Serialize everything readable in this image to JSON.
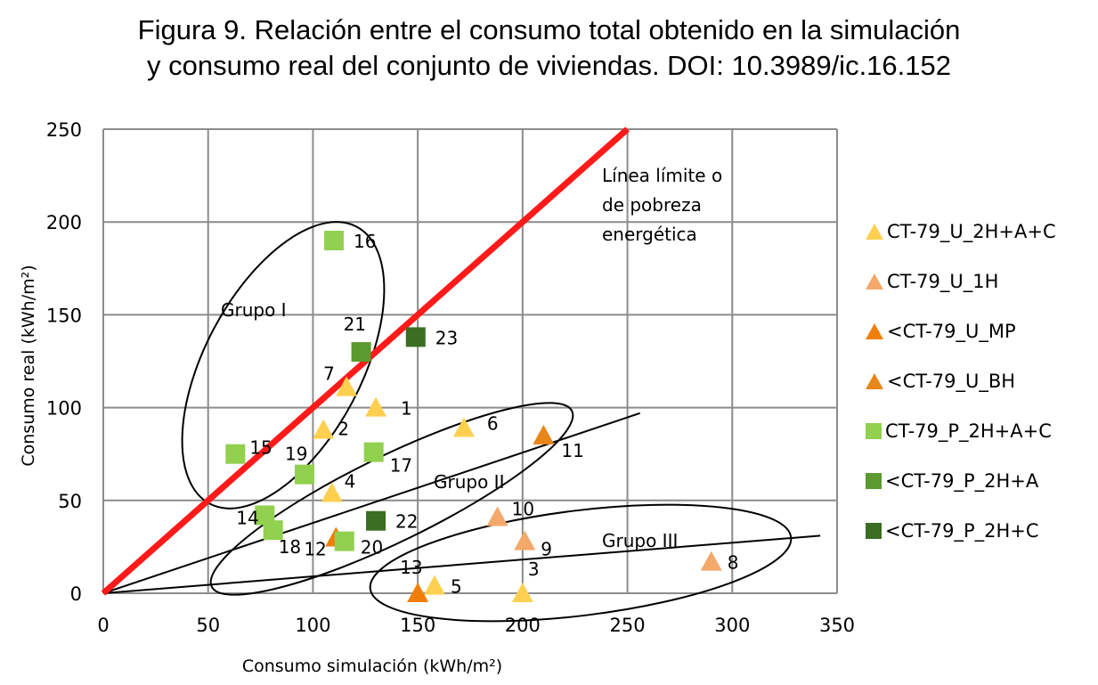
{
  "title_line1": "Figura 9. Relación entre el consumo total obtenido en la simulación",
  "title_line2": "y consumo real del conjunto de viviendas. DOI: 10.3989/ic.16.152",
  "chart_data": {
    "type": "scatter",
    "xlabel": "Consumo simulación (kWh/m²)",
    "ylabel": "Consumo real (kWh/m²)",
    "xlim": [
      0,
      350
    ],
    "ylim": [
      0,
      250
    ],
    "xticks": [
      0,
      50,
      100,
      150,
      200,
      250,
      300,
      350
    ],
    "yticks": [
      0,
      50,
      100,
      150,
      200,
      250
    ],
    "grid": true,
    "legend_position": "right",
    "series": [
      {
        "name": "CT-79_U_2H+A+C",
        "marker": "triangle",
        "color": "#FFD050",
        "points": [
          {
            "label": "1",
            "x": 130,
            "y": 100
          },
          {
            "label": "2",
            "x": 105,
            "y": 88
          },
          {
            "label": "3",
            "x": 200,
            "y": 0
          },
          {
            "label": "4",
            "x": 109,
            "y": 54
          },
          {
            "label": "5",
            "x": 158,
            "y": 4
          },
          {
            "label": "6",
            "x": 172,
            "y": 89
          },
          {
            "label": "7",
            "x": 116,
            "y": 111
          }
        ]
      },
      {
        "name": "CT-79_U_1H",
        "marker": "triangle",
        "color": "#F4A86A",
        "points": [
          {
            "label": "8",
            "x": 290,
            "y": 17
          },
          {
            "label": "9",
            "x": 201,
            "y": 28
          },
          {
            "label": "10",
            "x": 188,
            "y": 41
          }
        ]
      },
      {
        "name": "<CT-79_U_MP",
        "marker": "triangle",
        "color": "#F07F0A",
        "points": [
          {
            "label": "12",
            "x": 111,
            "y": 30
          },
          {
            "label": "13",
            "x": 150,
            "y": 0
          }
        ]
      },
      {
        "name": "<CT-79_U_BH",
        "marker": "triangle",
        "color": "#E8861A",
        "points": [
          {
            "label": "11",
            "x": 210,
            "y": 85
          }
        ]
      },
      {
        "name": "CT-79_P_2H+A+C",
        "marker": "square",
        "color": "#92D050",
        "points": [
          {
            "label": "14",
            "x": 77,
            "y": 42
          },
          {
            "label": "15",
            "x": 63,
            "y": 75
          },
          {
            "label": "16",
            "x": 110,
            "y": 190
          },
          {
            "label": "17",
            "x": 129,
            "y": 76
          },
          {
            "label": "18",
            "x": 81,
            "y": 34
          },
          {
            "label": "19",
            "x": 96,
            "y": 64
          },
          {
            "label": "20",
            "x": 115,
            "y": 28
          }
        ]
      },
      {
        "name": "<CT-79_P_2H+A",
        "marker": "square",
        "color": "#5A9A2E",
        "points": [
          {
            "label": "21",
            "x": 123,
            "y": 130
          }
        ]
      },
      {
        "name": "<CT-79_P_2H+C",
        "marker": "square",
        "color": "#3A6E22",
        "points": [
          {
            "label": "22",
            "x": 130,
            "y": 39
          },
          {
            "label": "23",
            "x": 149,
            "y": 138
          }
        ]
      }
    ],
    "limit_line": {
      "from": [
        0,
        0
      ],
      "to": [
        250,
        250
      ],
      "color": "#FF1A1A"
    },
    "trend_lines": [
      {
        "from": [
          0,
          0
        ],
        "to": [
          256,
          97
        ]
      },
      {
        "from": [
          0,
          0
        ],
        "to": [
          342,
          31
        ]
      }
    ],
    "annotations": [
      {
        "lines": [
          "Línea límite o",
          "de pobreza",
          "energética"
        ]
      },
      {
        "text": "Grupo I"
      },
      {
        "text": "Grupo II"
      },
      {
        "text": "Grupo III"
      }
    ]
  }
}
